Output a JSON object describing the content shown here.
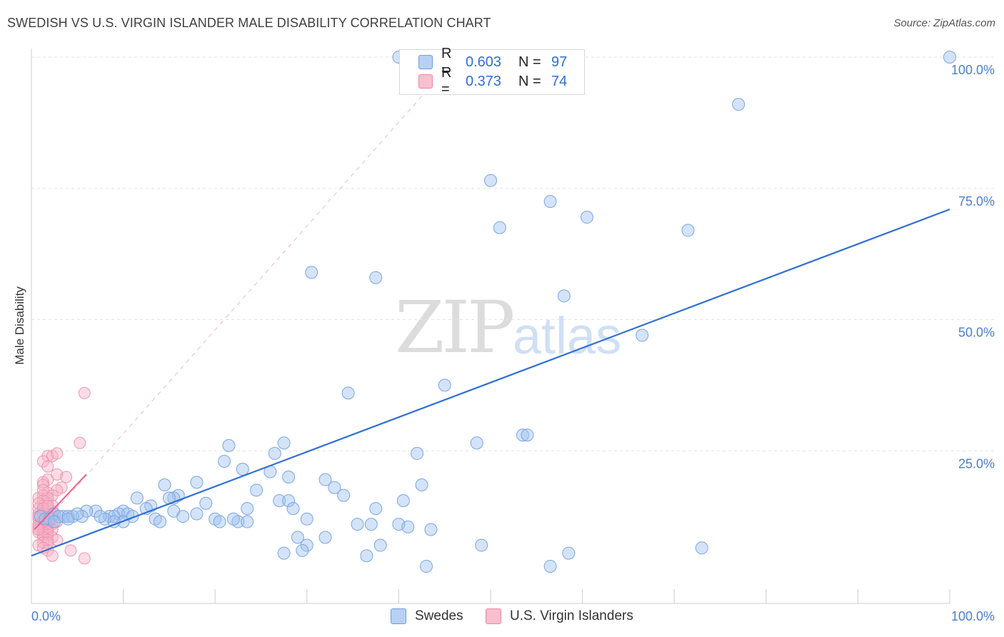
{
  "title": "SWEDISH VS U.S. VIRGIN ISLANDER MALE DISABILITY CORRELATION CHART",
  "source": "Source: ZipAtlas.com",
  "watermark": {
    "zip": "ZIP",
    "atlas": "atlas"
  },
  "legend": {
    "r_label": "R =",
    "n_label": "N =",
    "rows": [
      {
        "r": "0.603",
        "n": "97",
        "fill": "#b8d0f4",
        "stroke": "#6c9de0"
      },
      {
        "r": "0.373",
        "n": "74",
        "fill": "#f8bfd0",
        "stroke": "#ec86a6"
      }
    ]
  },
  "bottom_legend": [
    {
      "label": "Swedes",
      "fill": "#b8d0f4",
      "stroke": "#6c9de0"
    },
    {
      "label": "U.S. Virgin Islanders",
      "fill": "#f8bfd0",
      "stroke": "#ec86a6"
    }
  ],
  "colors": {
    "blue_point_fill": "rgba(160,192,238,0.45)",
    "blue_point_stroke": "#7aa6e3",
    "pink_point_fill": "rgba(246,178,200,0.45)",
    "pink_point_stroke": "#ee94b0",
    "blue_line": "#2f6fd6",
    "pink_line": "#e8608a",
    "grid": "#e2e2e2"
  },
  "chart_data": {
    "type": "scatter",
    "title": "SWEDISH VS U.S. VIRGIN ISLANDER MALE DISABILITY CORRELATION CHART",
    "xlabel": "",
    "ylabel": "Male Disability",
    "xlim": [
      0,
      100
    ],
    "ylim": [
      0,
      100
    ],
    "x_tick_labels": [
      "0.0%",
      "100.0%"
    ],
    "y_ticks": [
      25,
      50,
      75,
      100
    ],
    "y_tick_labels": [
      "25.0%",
      "50.0%",
      "75.0%",
      "100.0%"
    ],
    "grid": true,
    "series": [
      {
        "name": "Swedes",
        "r": 0.603,
        "n": 97,
        "trend": {
          "x": [
            0,
            100
          ],
          "y": [
            5.0,
            71.0
          ]
        },
        "points": [
          [
            40.0,
            100.0
          ],
          [
            100.0,
            100.0
          ],
          [
            77.0,
            91.0
          ],
          [
            50.0,
            76.5
          ],
          [
            56.5,
            72.5
          ],
          [
            51.0,
            67.5
          ],
          [
            60.5,
            69.5
          ],
          [
            71.5,
            67.0
          ],
          [
            37.5,
            58.0
          ],
          [
            30.5,
            59.0
          ],
          [
            58.0,
            54.5
          ],
          [
            66.5,
            47.0
          ],
          [
            45.0,
            37.5
          ],
          [
            34.5,
            36.0
          ],
          [
            53.5,
            28.0
          ],
          [
            54.0,
            28.0
          ],
          [
            48.5,
            26.5
          ],
          [
            21.5,
            26.0
          ],
          [
            27.5,
            26.5
          ],
          [
            42.0,
            24.5
          ],
          [
            26.5,
            24.5
          ],
          [
            21.0,
            23.0
          ],
          [
            23.0,
            21.5
          ],
          [
            26.0,
            21.0
          ],
          [
            28.0,
            20.0
          ],
          [
            32.0,
            19.5
          ],
          [
            18.0,
            19.0
          ],
          [
            33.0,
            18.0
          ],
          [
            42.5,
            18.5
          ],
          [
            14.5,
            18.5
          ],
          [
            24.5,
            17.5
          ],
          [
            16.0,
            16.5
          ],
          [
            34.0,
            16.5
          ],
          [
            15.5,
            16.0
          ],
          [
            11.5,
            16.0
          ],
          [
            15.0,
            16.0
          ],
          [
            40.5,
            15.5
          ],
          [
            27.0,
            15.5
          ],
          [
            28.0,
            15.5
          ],
          [
            19.0,
            15.0
          ],
          [
            13.0,
            14.5
          ],
          [
            23.5,
            14.0
          ],
          [
            12.5,
            14.0
          ],
          [
            37.5,
            14.0
          ],
          [
            28.5,
            14.0
          ],
          [
            10.0,
            13.5
          ],
          [
            18.0,
            13.0
          ],
          [
            9.5,
            13.0
          ],
          [
            10.5,
            13.0
          ],
          [
            7.0,
            13.5
          ],
          [
            6.0,
            13.5
          ],
          [
            2.5,
            13.0
          ],
          [
            5.5,
            12.5
          ],
          [
            3.5,
            12.5
          ],
          [
            1.0,
            12.5
          ],
          [
            1.5,
            12.0
          ],
          [
            2.0,
            12.0
          ],
          [
            3.0,
            12.5
          ],
          [
            4.0,
            12.5
          ],
          [
            4.5,
            12.5
          ],
          [
            8.5,
            12.5
          ],
          [
            9.0,
            12.5
          ],
          [
            13.5,
            12.0
          ],
          [
            30.0,
            12.0
          ],
          [
            20.0,
            12.0
          ],
          [
            4.0,
            12.0
          ],
          [
            8.0,
            12.0
          ],
          [
            20.5,
            11.5
          ],
          [
            10.0,
            11.5
          ],
          [
            14.0,
            11.5
          ],
          [
            22.5,
            11.5
          ],
          [
            23.5,
            11.5
          ],
          [
            35.5,
            11.0
          ],
          [
            40.0,
            11.0
          ],
          [
            37.0,
            11.0
          ],
          [
            41.0,
            10.5
          ],
          [
            22.0,
            12.0
          ],
          [
            43.5,
            10.0
          ],
          [
            29.0,
            8.5
          ],
          [
            32.0,
            8.5
          ],
          [
            38.0,
            7.0
          ],
          [
            49.0,
            7.0
          ],
          [
            30.0,
            7.0
          ],
          [
            73.0,
            6.5
          ],
          [
            29.5,
            6.0
          ],
          [
            27.5,
            5.5
          ],
          [
            36.5,
            5.0
          ],
          [
            58.5,
            5.5
          ],
          [
            43.0,
            3.0
          ],
          [
            56.5,
            3.0
          ],
          [
            7.5,
            12.5
          ],
          [
            5.0,
            13.0
          ],
          [
            9.0,
            11.5
          ],
          [
            2.5,
            11.5
          ],
          [
            11.0,
            12.5
          ],
          [
            15.5,
            13.5
          ],
          [
            16.5,
            12.5
          ]
        ]
      },
      {
        "name": "U.S. Virgin Islanders",
        "r": 0.373,
        "n": 74,
        "trend": {
          "x": [
            0,
            5.2
          ],
          "y": [
            10.0,
            20.5
          ]
        },
        "trend_extended": {
          "x": [
            0,
            46
          ],
          "y": [
            10.0,
            101.0
          ]
        },
        "points": [
          [
            5.0,
            36.0
          ],
          [
            4.5,
            26.5
          ],
          [
            1.0,
            24.0
          ],
          [
            1.5,
            24.0
          ],
          [
            2.0,
            24.5
          ],
          [
            0.5,
            23.0
          ],
          [
            1.0,
            22.0
          ],
          [
            2.0,
            20.5
          ],
          [
            3.0,
            20.0
          ],
          [
            1.0,
            19.5
          ],
          [
            0.5,
            19.0
          ],
          [
            0.5,
            18.5
          ],
          [
            2.5,
            18.0
          ],
          [
            2.0,
            17.5
          ],
          [
            1.0,
            17.0
          ],
          [
            0.5,
            16.5
          ],
          [
            1.5,
            16.5
          ],
          [
            0.0,
            16.0
          ],
          [
            0.5,
            15.5
          ],
          [
            1.0,
            15.0
          ],
          [
            0.5,
            14.5
          ],
          [
            0.0,
            14.0
          ],
          [
            1.0,
            14.0
          ],
          [
            1.5,
            13.5
          ],
          [
            0.5,
            13.5
          ],
          [
            0.0,
            13.0
          ],
          [
            0.5,
            12.5
          ],
          [
            1.0,
            12.5
          ],
          [
            1.5,
            12.5
          ],
          [
            0.5,
            12.0
          ],
          [
            0.0,
            12.0
          ],
          [
            1.0,
            12.0
          ],
          [
            0.5,
            11.5
          ],
          [
            1.0,
            11.5
          ],
          [
            0.0,
            11.0
          ],
          [
            0.5,
            11.0
          ],
          [
            1.0,
            11.0
          ],
          [
            1.5,
            11.0
          ],
          [
            0.5,
            10.5
          ],
          [
            0.0,
            10.5
          ],
          [
            1.0,
            10.5
          ],
          [
            0.5,
            10.0
          ],
          [
            1.0,
            10.0
          ],
          [
            1.5,
            10.0
          ],
          [
            0.5,
            9.5
          ],
          [
            1.0,
            9.5
          ],
          [
            0.0,
            9.5
          ],
          [
            0.5,
            9.0
          ],
          [
            1.0,
            9.0
          ],
          [
            1.5,
            8.5
          ],
          [
            0.5,
            8.5
          ],
          [
            1.0,
            8.0
          ],
          [
            2.0,
            8.0
          ],
          [
            0.5,
            7.5
          ],
          [
            1.0,
            7.5
          ],
          [
            0.0,
            7.0
          ],
          [
            0.5,
            6.5
          ],
          [
            1.0,
            6.0
          ],
          [
            3.5,
            6.0
          ],
          [
            1.5,
            5.0
          ],
          [
            5.0,
            4.5
          ],
          [
            0.5,
            13.0
          ],
          [
            1.0,
            13.0
          ],
          [
            1.5,
            12.0
          ],
          [
            0.0,
            12.5
          ],
          [
            1.0,
            16.0
          ],
          [
            0.5,
            17.5
          ],
          [
            1.5,
            14.5
          ],
          [
            0.0,
            15.0
          ],
          [
            2.0,
            11.5
          ],
          [
            0.5,
            14.0
          ],
          [
            1.0,
            14.5
          ],
          [
            1.5,
            13.0
          ],
          [
            0.0,
            10.0
          ]
        ]
      }
    ]
  }
}
